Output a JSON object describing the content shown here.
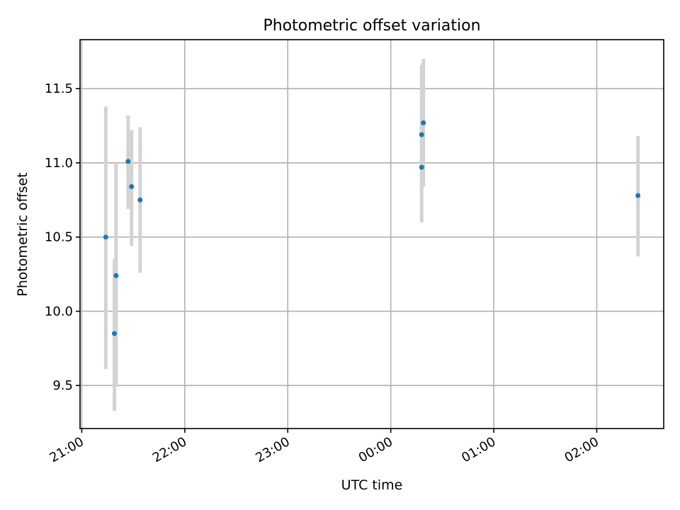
{
  "chart_data": {
    "type": "scatter",
    "title": "Photometric offset variation",
    "xlabel": "UTC time",
    "ylabel": "Photometric offset",
    "x_is_time": true,
    "xlim": [
      "20:59",
      "02:39"
    ],
    "ylim": [
      9.21,
      11.83
    ],
    "x_ticks": [
      "21:00",
      "22:00",
      "23:00",
      "00:00",
      "01:00",
      "02:00"
    ],
    "y_ticks": [
      9.5,
      10.0,
      10.5,
      11.0,
      11.5
    ],
    "y_tick_labels": [
      "9.5",
      "10.0",
      "10.5",
      "11.0",
      "11.5"
    ],
    "grid": true,
    "series": [
      {
        "color": "#1f77b4",
        "errorbar_color": "#d3d3d3",
        "points": [
          {
            "x": "21:14",
            "y": 10.5,
            "y_low": 9.61,
            "y_high": 11.38
          },
          {
            "x": "21:19",
            "y": 9.85,
            "y_low": 9.33,
            "y_high": 10.35
          },
          {
            "x": "21:20",
            "y": 10.24,
            "y_low": 9.49,
            "y_high": 11.0
          },
          {
            "x": "21:27",
            "y": 11.01,
            "y_low": 10.69,
            "y_high": 11.32
          },
          {
            "x": "21:29",
            "y": 10.84,
            "y_low": 10.44,
            "y_high": 11.22
          },
          {
            "x": "21:34",
            "y": 10.75,
            "y_low": 10.26,
            "y_high": 11.24
          },
          {
            "x": "00:18",
            "y": 10.97,
            "y_low": 10.6,
            "y_high": 11.32
          },
          {
            "x": "00:18",
            "y": 11.19,
            "y_low": 10.83,
            "y_high": 11.66
          },
          {
            "x": "00:19",
            "y": 11.27,
            "y_low": 10.84,
            "y_high": 11.7
          },
          {
            "x": "02:24",
            "y": 10.78,
            "y_low": 10.37,
            "y_high": 11.18
          }
        ]
      }
    ]
  }
}
